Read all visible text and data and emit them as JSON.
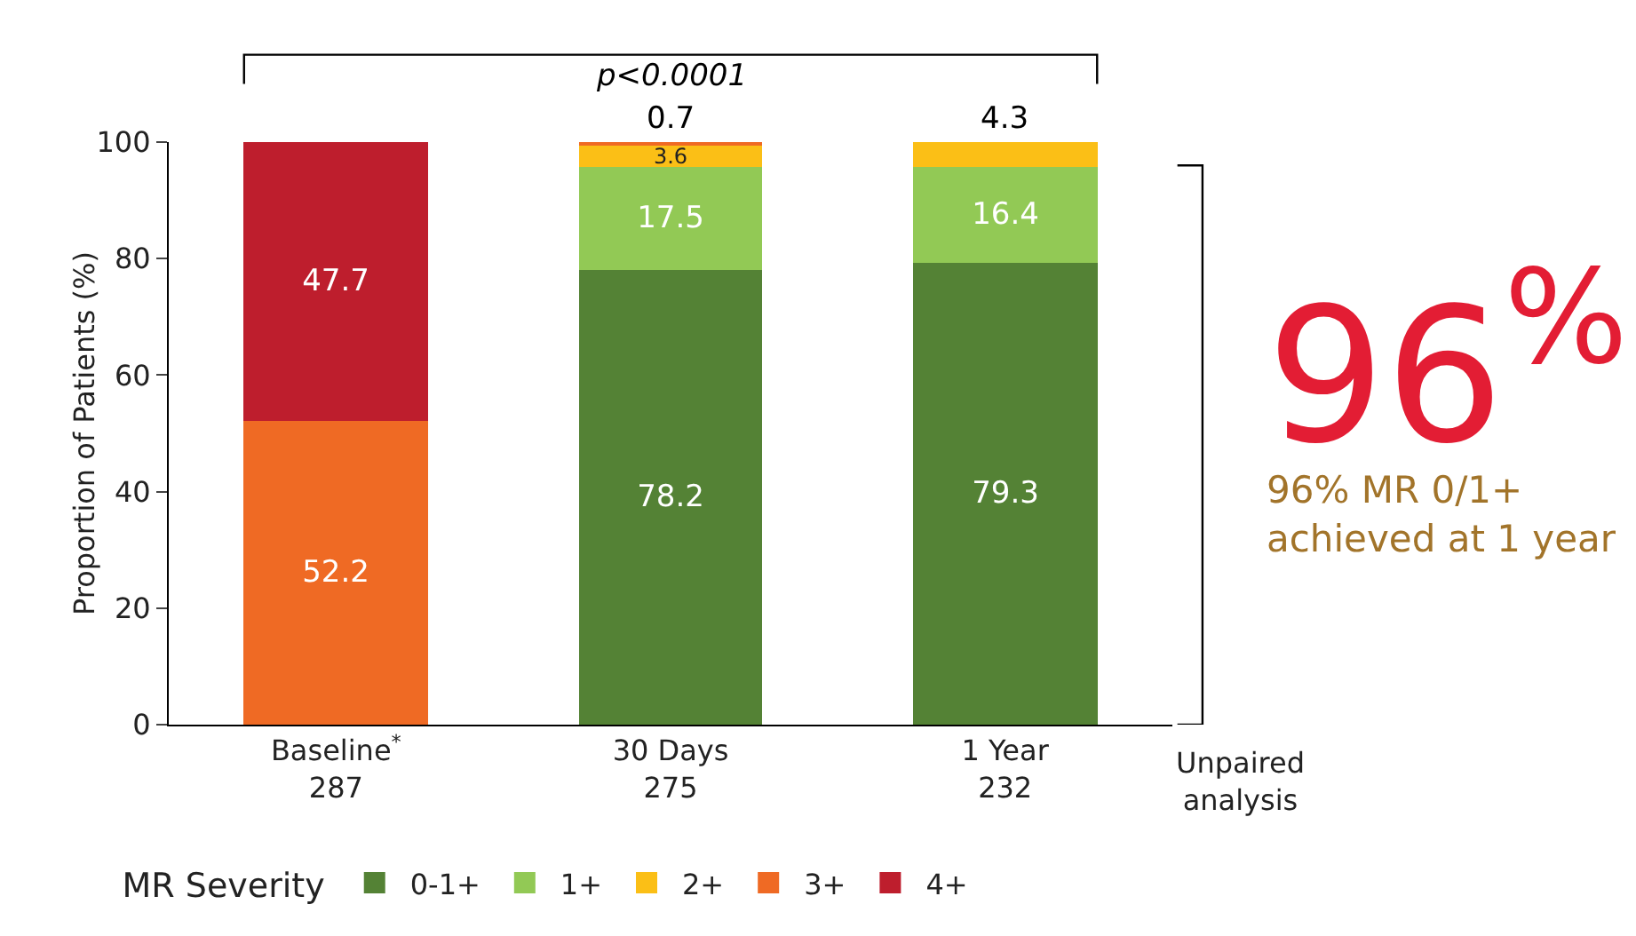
{
  "chart_data": {
    "type": "bar",
    "stacked": true,
    "ylabel": "Proportion of Patients (%)",
    "legend_title": "MR Severity",
    "legend": "bottom",
    "categories": [
      "Baseline$^{*}$\n287",
      "30 Days\n275",
      "1 Year\n232"
    ],
    "series": [
      {
        "name": "0-1+",
        "color": "#548235",
        "values": [
          null,
          78.2,
          79.3
        ]
      },
      {
        "name": "1+",
        "color": "#92c955",
        "values": [
          null,
          17.5,
          16.4
        ]
      },
      {
        "name": "2+",
        "color": "#fbbf16",
        "values": [
          null,
          3.6,
          4.3
        ]
      },
      {
        "name": "3+",
        "color": "#ef6a24",
        "values": [
          52.2,
          0.7,
          null
        ]
      },
      {
        "name": "4+",
        "color": "#be1e2d",
        "values": [
          47.7,
          null,
          null
        ]
      }
    ],
    "ylim": [
      0,
      100
    ],
    "yticks": [
      0,
      20,
      40,
      60,
      80,
      100
    ],
    "grid": false,
    "data_labels": true,
    "annotations": [
      "p<0.0001",
      "96$^{%}$",
      "96% MR 0/1+\nachieved at 1 year",
      "Unpaired\nanalysis"
    ]
  }
}
